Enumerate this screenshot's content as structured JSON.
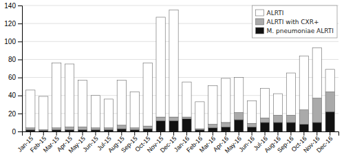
{
  "chart_data": {
    "type": "bar",
    "categories": [
      "Jan-15",
      "Feb-15",
      "Mar-15",
      "Apr-15",
      "May-15",
      "Jun-15",
      "Jul-15",
      "Aug-15",
      "Sep-15",
      "Oct-15",
      "Nov-15",
      "Dec-15",
      "Jan-16",
      "Feb-16",
      "Mar-16",
      "Apr-16",
      "May-16",
      "Jun-16",
      "Jul-16",
      "Aug-16",
      "Sep-16",
      "Oct-16",
      "Nov-16",
      "Dec-16"
    ],
    "series": [
      {
        "name": "ALRTI",
        "color": "#ffffff",
        "values": [
          42,
          37,
          72,
          70,
          52,
          36,
          32,
          50,
          40,
          70,
          111,
          119,
          39,
          30,
          43,
          49,
          39,
          25,
          33,
          24,
          47,
          60,
          56,
          25
        ]
      },
      {
        "name": "ALRTI with CXR+",
        "color": "#aaaaaa",
        "values": [
          2,
          1,
          2,
          3,
          3,
          2,
          2,
          4,
          2,
          3,
          4,
          4,
          2,
          1,
          4,
          5,
          8,
          4,
          5,
          8,
          8,
          16,
          27,
          22
        ]
      },
      {
        "name": "M. pneumoniae ALRTI",
        "color": "#111111",
        "values": [
          2,
          1,
          2,
          2,
          2,
          2,
          2,
          3,
          2,
          3,
          12,
          12,
          14,
          2,
          4,
          5,
          13,
          5,
          10,
          10,
          10,
          8,
          10,
          22
        ]
      }
    ],
    "stacked": true,
    "ylim": [
      0,
      140
    ],
    "yticks": [
      0,
      20,
      40,
      60,
      80,
      100,
      120,
      140
    ],
    "grid": true,
    "legend": "upper right"
  }
}
